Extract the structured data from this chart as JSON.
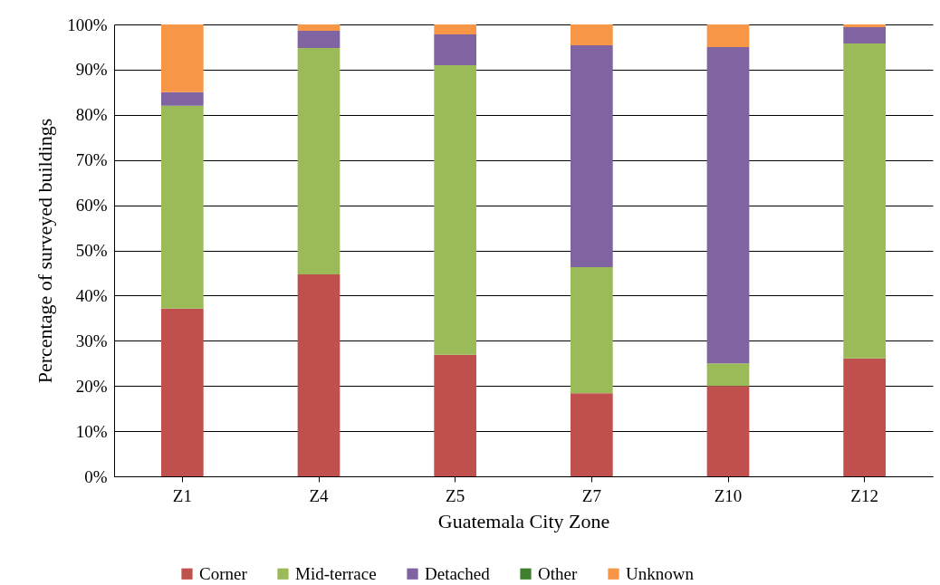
{
  "chart_data": {
    "type": "bar",
    "stacked": true,
    "xlabel": "Guatemala City Zone",
    "ylabel": "Percentage of surveyed buildings",
    "categories": [
      "Z1",
      "Z4",
      "Z5",
      "Z7",
      "Z10",
      "Z12"
    ],
    "series": [
      {
        "name": "Corner",
        "color": "#c0504d",
        "values": [
          37.1,
          44.7,
          26.9,
          18.4,
          20.0,
          26.1
        ]
      },
      {
        "name": "Mid-terrace",
        "color": "#9bbb59",
        "values": [
          44.9,
          50.1,
          64.1,
          27.9,
          5.0,
          69.7
        ]
      },
      {
        "name": "Detached",
        "color": "#8064a2",
        "values": [
          3.0,
          3.8,
          6.8,
          49.1,
          70.0,
          3.6
        ]
      },
      {
        "name": "Other",
        "color": "#3f7f2f",
        "values": [
          0,
          0,
          0,
          0,
          0,
          0
        ]
      },
      {
        "name": "Unknown",
        "color": "#f79646",
        "values": [
          15.0,
          1.4,
          2.2,
          4.6,
          5.0,
          0.6
        ]
      }
    ],
    "ylim": [
      0,
      100
    ],
    "yticks": [
      {
        "value": 0,
        "label": "0%"
      },
      {
        "value": 10,
        "label": "10%"
      },
      {
        "value": 20,
        "label": "20%"
      },
      {
        "value": 30,
        "label": "30%"
      },
      {
        "value": 40,
        "label": "40%"
      },
      {
        "value": 50,
        "label": "50%"
      },
      {
        "value": 60,
        "label": "60%"
      },
      {
        "value": 70,
        "label": "70%"
      },
      {
        "value": 80,
        "label": "80%"
      },
      {
        "value": 90,
        "label": "90%"
      },
      {
        "value": 100,
        "label": "100%"
      }
    ],
    "grid": "y",
    "legend": "bottom"
  }
}
